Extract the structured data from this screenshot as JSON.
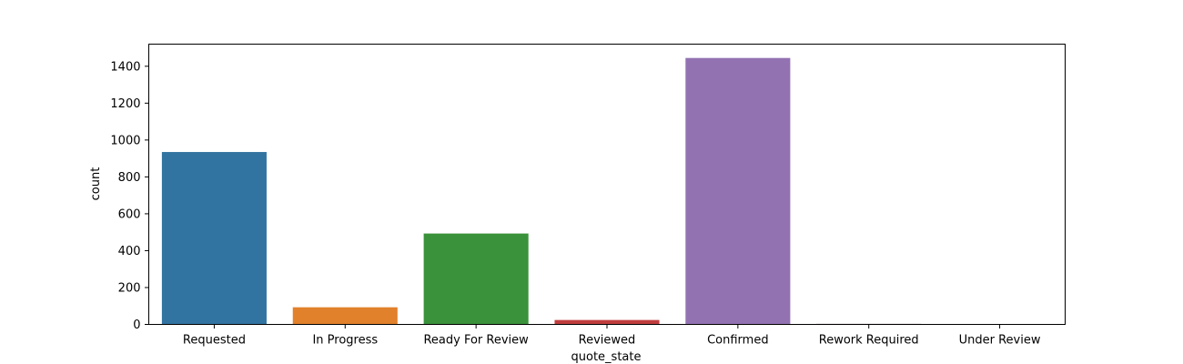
{
  "chart_data": {
    "type": "bar",
    "xlabel": "quote_state",
    "ylabel": "count",
    "categories": [
      "Requested",
      "In Progress",
      "Ready For Review",
      "Reviewed",
      "Confirmed",
      "Rework Required",
      "Under Review"
    ],
    "values": [
      935,
      93,
      493,
      24,
      1445,
      3,
      2
    ],
    "colors": [
      "#3274a1",
      "#e1812c",
      "#3a923a",
      "#c03d3e",
      "#9372b2",
      "#845b53",
      "#d684bd"
    ],
    "ylim": [
      0,
      1520
    ],
    "yticks": [
      0,
      200,
      400,
      600,
      800,
      1000,
      1200,
      1400
    ],
    "grid": false
  }
}
